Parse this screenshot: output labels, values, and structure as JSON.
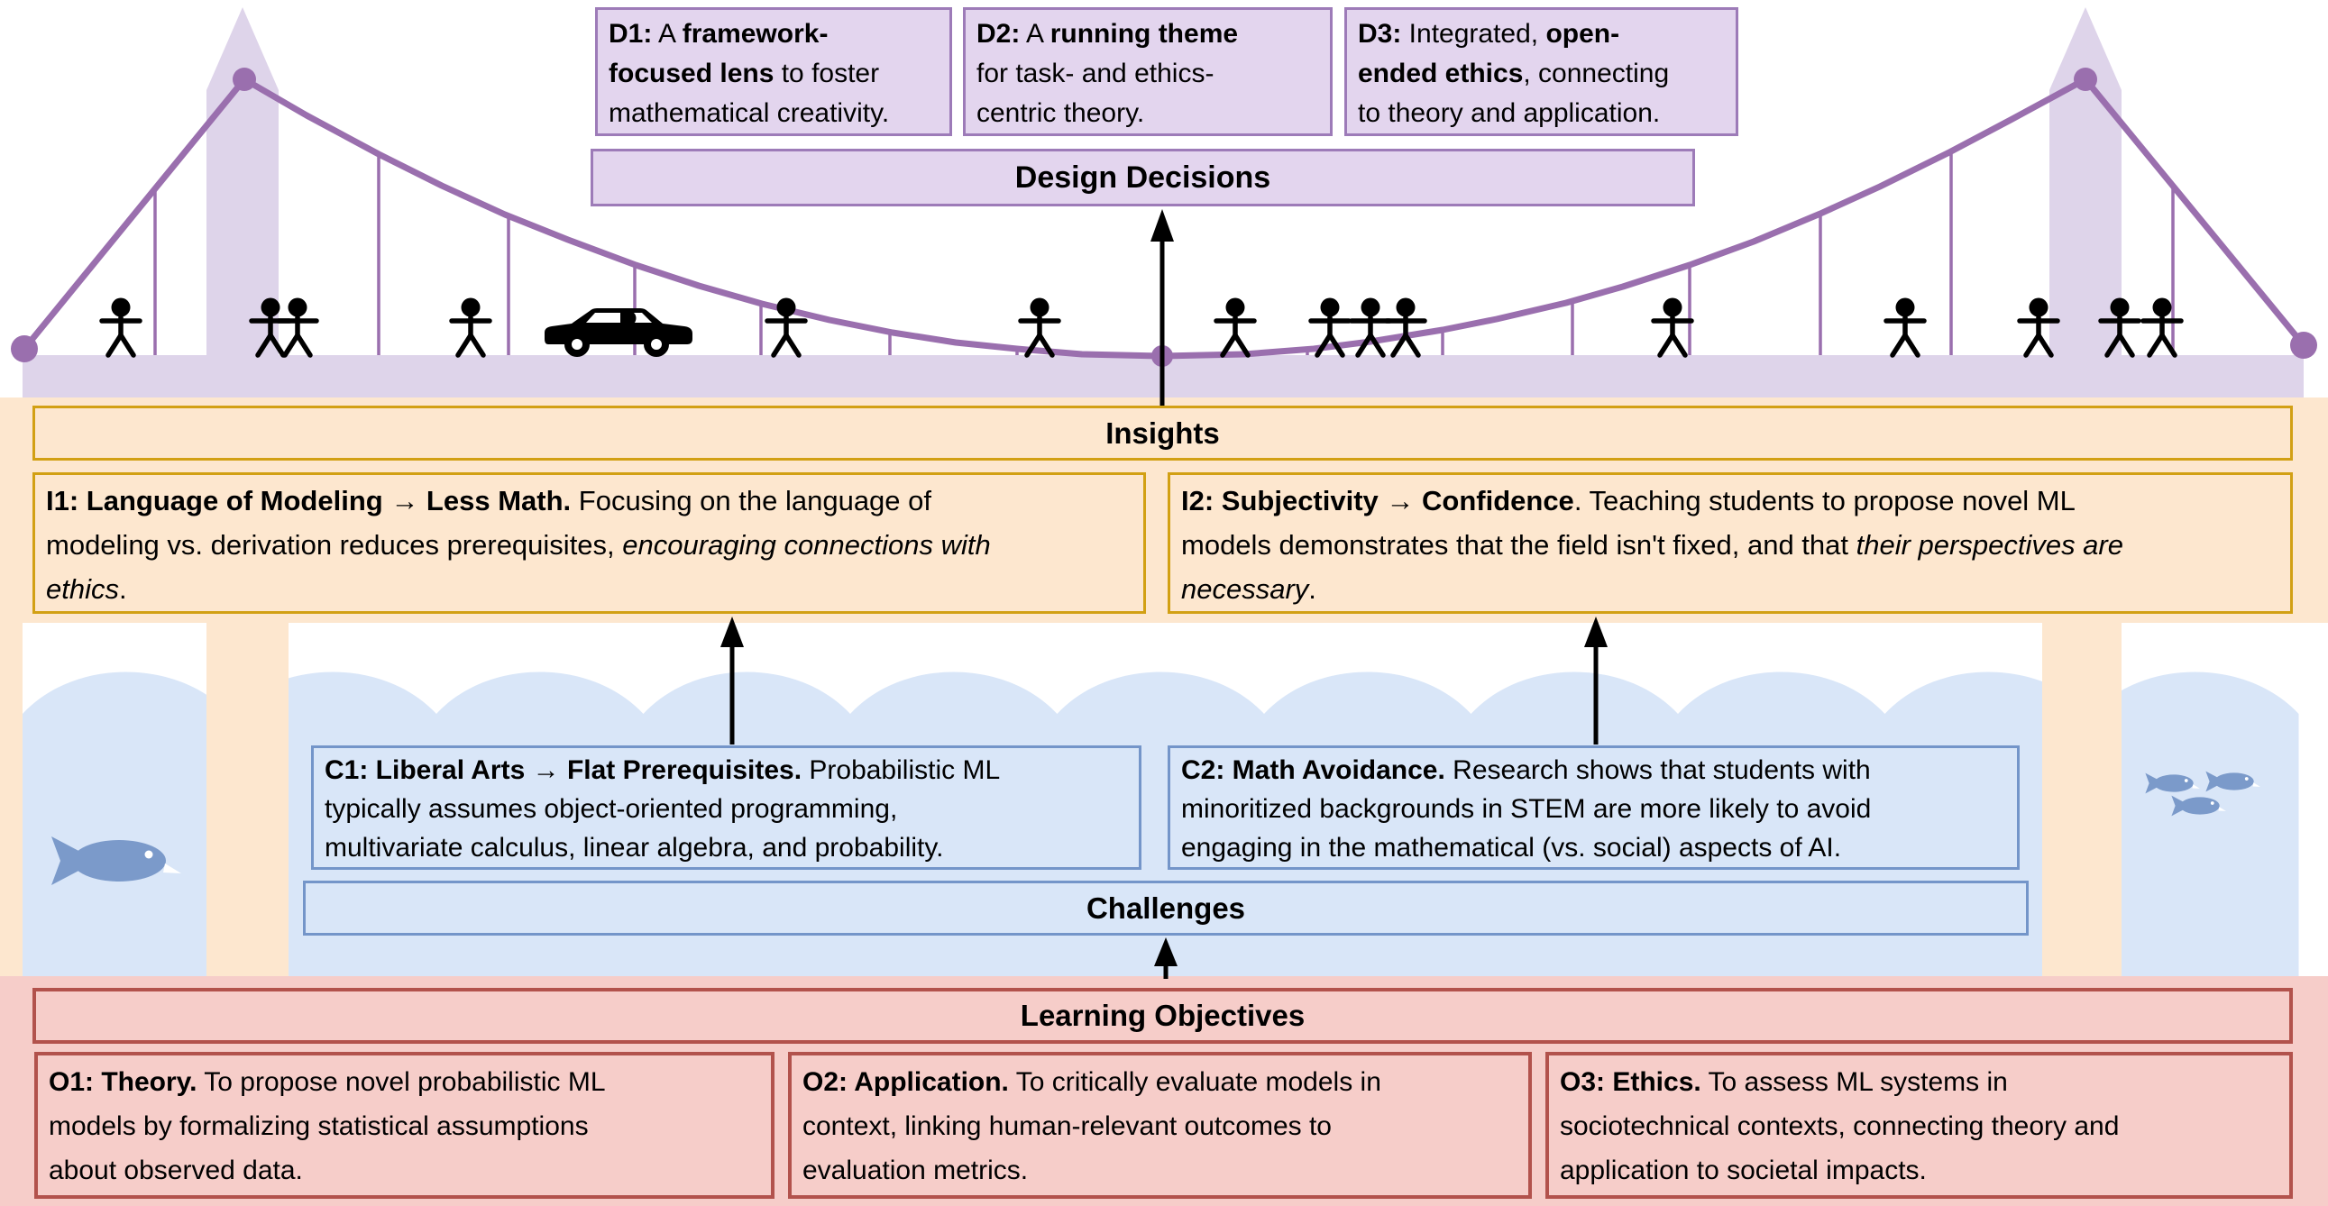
{
  "design_decisions": {
    "banner": "Design Decisions",
    "boxes": [
      {
        "id": "D1",
        "segments": [
          {
            "t": "D1:",
            "b": true
          },
          {
            "t": " A "
          },
          {
            "t": "framework-",
            "b": true
          },
          {
            "br": true
          },
          {
            "t": "focused lens",
            "b": true
          },
          {
            "t": " to foster"
          },
          {
            "br": true
          },
          {
            "t": "mathematical creativity."
          }
        ]
      },
      {
        "id": "D2",
        "segments": [
          {
            "t": "D2:",
            "b": true
          },
          {
            "t": " A "
          },
          {
            "t": "running theme",
            "b": true
          },
          {
            "br": true
          },
          {
            "t": "for task- and ethics-"
          },
          {
            "br": true
          },
          {
            "t": "centric theory."
          }
        ]
      },
      {
        "id": "D3",
        "segments": [
          {
            "t": "D3:",
            "b": true
          },
          {
            "t": " Integrated, "
          },
          {
            "t": "open-",
            "b": true
          },
          {
            "br": true
          },
          {
            "t": "ended ethics",
            "b": true
          },
          {
            "t": ", connecting"
          },
          {
            "br": true
          },
          {
            "t": "to theory and application."
          }
        ]
      }
    ]
  },
  "insights": {
    "banner": "Insights",
    "boxes": [
      {
        "id": "I1",
        "segments": [
          {
            "t": "I1: Language of Modeling → Less Math.",
            "b": true
          },
          {
            "t": " Focusing on the language of"
          },
          {
            "br": true
          },
          {
            "t": "modeling vs. derivation reduces prerequisites, "
          },
          {
            "t": "encouraging connections with",
            "i": true
          },
          {
            "br": true
          },
          {
            "t": "ethics",
            "i": true
          },
          {
            "t": "."
          }
        ]
      },
      {
        "id": "I2",
        "segments": [
          {
            "t": "I2: Subjectivity → Confidence",
            "b": true
          },
          {
            "t": ". Teaching students to propose novel ML"
          },
          {
            "br": true
          },
          {
            "t": "models demonstrates that the field isn't fixed, and that "
          },
          {
            "t": "their perspectives are",
            "i": true
          },
          {
            "br": true
          },
          {
            "t": "necessary",
            "i": true
          },
          {
            "t": "."
          }
        ]
      }
    ]
  },
  "challenges": {
    "banner": "Challenges",
    "boxes": [
      {
        "id": "C1",
        "segments": [
          {
            "t": "C1: Liberal Arts → Flat Prerequisites.",
            "b": true
          },
          {
            "t": " Probabilistic ML"
          },
          {
            "br": true
          },
          {
            "t": "typically assumes object-oriented programming,"
          },
          {
            "br": true
          },
          {
            "t": "multivariate calculus, linear algebra, and probability."
          }
        ]
      },
      {
        "id": "C2",
        "segments": [
          {
            "t": "C2: Math Avoidance.",
            "b": true
          },
          {
            "t": " Research shows that students with"
          },
          {
            "br": true
          },
          {
            "t": "minoritized backgrounds in STEM are more likely to avoid"
          },
          {
            "br": true
          },
          {
            "t": "engaging in the mathematical (vs. social) aspects of AI."
          }
        ]
      }
    ]
  },
  "learning_objectives": {
    "banner": "Learning Objectives",
    "boxes": [
      {
        "id": "O1",
        "segments": [
          {
            "t": "O1: Theory.",
            "b": true
          },
          {
            "t": " To propose novel probabilistic ML"
          },
          {
            "br": true
          },
          {
            "t": "models by formalizing statistical assumptions"
          },
          {
            "br": true
          },
          {
            "t": "about observed data."
          }
        ]
      },
      {
        "id": "O2",
        "segments": [
          {
            "t": "O2: Application.",
            "b": true
          },
          {
            "t": " To critically evaluate models in"
          },
          {
            "br": true
          },
          {
            "t": "context, linking human-relevant outcomes to"
          },
          {
            "br": true
          },
          {
            "t": "evaluation metrics."
          }
        ]
      },
      {
        "id": "O3",
        "segments": [
          {
            "t": "O3: Ethics.",
            "b": true
          },
          {
            "t": " To assess ML systems in"
          },
          {
            "br": true
          },
          {
            "t": "sociotechnical contexts, connecting theory and"
          },
          {
            "br": true
          },
          {
            "t": "application to societal impacts."
          }
        ]
      }
    ]
  },
  "illustration": {
    "bridge": {
      "pedestrian_count": 15,
      "car_count": 1,
      "tower_count": 2,
      "deck_color": "#ded4ea",
      "cable_color": "#9a6fae"
    },
    "water": {
      "water_color": "#d9e6f8",
      "fish_color": "#7b9aca",
      "fish_left_count": 1,
      "fish_right_count": 3
    },
    "section_colors": {
      "design_fill": "#e3d5ee",
      "design_border": "#9d7bb8",
      "insight_fill": "#fde7cf",
      "insight_border": "#d2a014",
      "challenge_fill": "#d9e6f8",
      "challenge_border": "#7495c9",
      "objective_fill": "#f6cdc9",
      "objective_border": "#b2524c",
      "arrow_color": "#000000"
    }
  }
}
